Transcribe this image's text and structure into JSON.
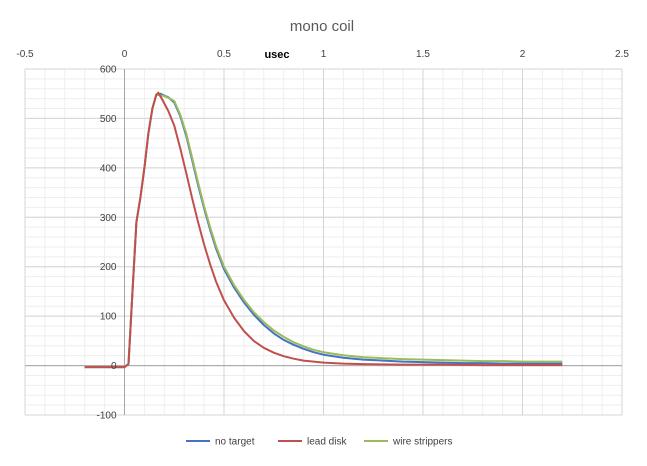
{
  "chart_data": {
    "type": "line",
    "title": "mono coil",
    "xlabel": "usec",
    "ylabel": "",
    "xlim": [
      -0.5,
      2.5
    ],
    "ylim": [
      -100,
      600
    ],
    "x_ticks": [
      "-0.5",
      "0",
      "0.5",
      "1",
      "1.5",
      "2",
      "2.5"
    ],
    "x_tick_values": [
      -0.5,
      0,
      0.5,
      1,
      1.5,
      2,
      2.5
    ],
    "y_ticks": [
      "-100",
      "0",
      "100",
      "200",
      "300",
      "400",
      "500",
      "600"
    ],
    "y_tick_values": [
      -100,
      0,
      100,
      200,
      300,
      400,
      500,
      600
    ],
    "grid": "on (major and minor)",
    "legend_position": "bottom",
    "series": [
      {
        "name": "no target",
        "color": "#4472C4",
        "points": [
          [
            -0.2,
            -3
          ],
          [
            0,
            -3
          ],
          [
            0.02,
            3
          ],
          [
            0.04,
            150
          ],
          [
            0.06,
            290
          ],
          [
            0.08,
            340
          ],
          [
            0.1,
            400
          ],
          [
            0.12,
            470
          ],
          [
            0.14,
            520
          ],
          [
            0.16,
            548
          ],
          [
            0.18,
            550
          ],
          [
            0.2,
            546
          ],
          [
            0.22,
            543
          ],
          [
            0.25,
            532
          ],
          [
            0.28,
            505
          ],
          [
            0.31,
            465
          ],
          [
            0.34,
            415
          ],
          [
            0.37,
            365
          ],
          [
            0.4,
            318
          ],
          [
            0.43,
            275
          ],
          [
            0.46,
            237
          ],
          [
            0.5,
            195
          ],
          [
            0.55,
            158
          ],
          [
            0.6,
            128
          ],
          [
            0.65,
            103
          ],
          [
            0.7,
            82
          ],
          [
            0.75,
            65
          ],
          [
            0.8,
            52
          ],
          [
            0.85,
            42
          ],
          [
            0.9,
            34
          ],
          [
            0.95,
            27
          ],
          [
            1.0,
            22
          ],
          [
            1.1,
            16
          ],
          [
            1.2,
            12
          ],
          [
            1.3,
            10
          ],
          [
            1.4,
            8
          ],
          [
            1.5,
            7
          ],
          [
            1.6,
            6
          ],
          [
            1.7,
            5
          ],
          [
            1.8,
            5
          ],
          [
            1.9,
            4
          ],
          [
            2.0,
            4
          ],
          [
            2.1,
            4
          ],
          [
            2.2,
            4
          ]
        ]
      },
      {
        "name": "lead disk",
        "color": "#C0504D",
        "points": [
          [
            -0.2,
            -3
          ],
          [
            0,
            -3
          ],
          [
            0.02,
            3
          ],
          [
            0.04,
            150
          ],
          [
            0.06,
            290
          ],
          [
            0.08,
            340
          ],
          [
            0.1,
            400
          ],
          [
            0.12,
            470
          ],
          [
            0.14,
            520
          ],
          [
            0.16,
            548
          ],
          [
            0.17,
            552
          ],
          [
            0.19,
            538
          ],
          [
            0.22,
            515
          ],
          [
            0.25,
            485
          ],
          [
            0.28,
            440
          ],
          [
            0.31,
            390
          ],
          [
            0.34,
            338
          ],
          [
            0.37,
            290
          ],
          [
            0.4,
            245
          ],
          [
            0.43,
            205
          ],
          [
            0.46,
            170
          ],
          [
            0.5,
            132
          ],
          [
            0.55,
            97
          ],
          [
            0.6,
            70
          ],
          [
            0.65,
            50
          ],
          [
            0.7,
            36
          ],
          [
            0.75,
            26
          ],
          [
            0.8,
            19
          ],
          [
            0.85,
            14
          ],
          [
            0.9,
            10
          ],
          [
            0.95,
            8
          ],
          [
            1.0,
            6
          ],
          [
            1.1,
            4
          ],
          [
            1.2,
            3
          ],
          [
            1.4,
            2
          ],
          [
            1.6,
            2
          ],
          [
            1.8,
            1
          ],
          [
            2.0,
            1
          ],
          [
            2.2,
            1
          ]
        ]
      },
      {
        "name": "wire strippers",
        "color": "#9BBB59",
        "points": [
          [
            -0.2,
            -3
          ],
          [
            0,
            -3
          ],
          [
            0.02,
            3
          ],
          [
            0.04,
            150
          ],
          [
            0.06,
            290
          ],
          [
            0.08,
            340
          ],
          [
            0.1,
            400
          ],
          [
            0.12,
            470
          ],
          [
            0.14,
            520
          ],
          [
            0.16,
            548
          ],
          [
            0.18,
            547
          ],
          [
            0.2,
            545
          ],
          [
            0.22,
            542
          ],
          [
            0.25,
            535
          ],
          [
            0.28,
            508
          ],
          [
            0.31,
            470
          ],
          [
            0.34,
            420
          ],
          [
            0.37,
            370
          ],
          [
            0.4,
            322
          ],
          [
            0.43,
            280
          ],
          [
            0.46,
            242
          ],
          [
            0.5,
            200
          ],
          [
            0.55,
            163
          ],
          [
            0.6,
            133
          ],
          [
            0.65,
            108
          ],
          [
            0.7,
            88
          ],
          [
            0.75,
            71
          ],
          [
            0.8,
            58
          ],
          [
            0.85,
            47
          ],
          [
            0.9,
            39
          ],
          [
            0.95,
            32
          ],
          [
            1.0,
            27
          ],
          [
            1.1,
            21
          ],
          [
            1.2,
            17
          ],
          [
            1.3,
            15
          ],
          [
            1.4,
            13
          ],
          [
            1.5,
            12
          ],
          [
            1.6,
            11
          ],
          [
            1.7,
            10
          ],
          [
            1.8,
            9
          ],
          [
            1.9,
            9
          ],
          [
            2.0,
            8
          ],
          [
            2.1,
            8
          ],
          [
            2.2,
            8
          ]
        ]
      }
    ]
  }
}
